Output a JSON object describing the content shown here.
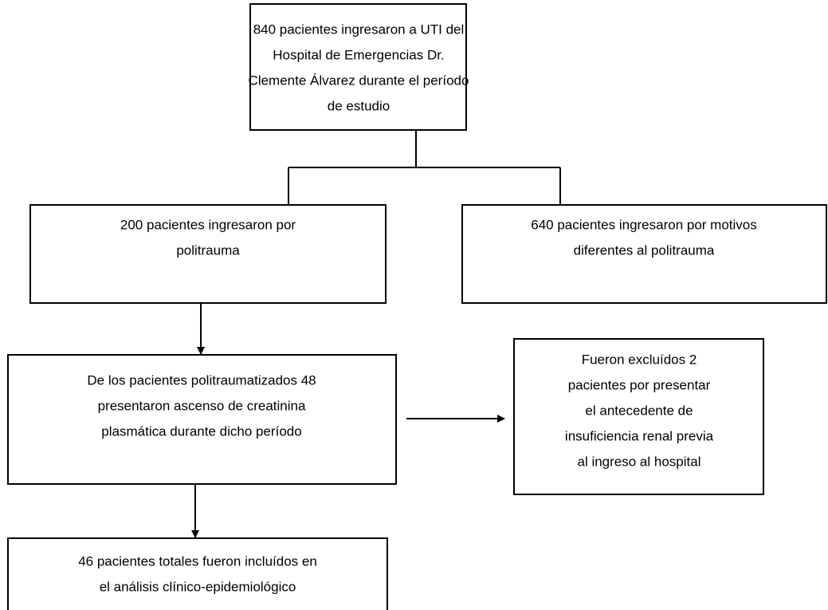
{
  "nodes": [
    {
      "lines": [
        "840 pacientes ingresaron a UTI del",
        "Hospital de Emergencias Dr.",
        "Clemente Álvarez durante el período",
        "de estudio"
      ]
    },
    {
      "lines": [
        "200 pacientes ingresaron por",
        "politrauma"
      ]
    },
    {
      "lines": [
        "640 pacientes ingresaron por motivos",
        "diferentes al politrauma"
      ]
    },
    {
      "lines": [
        "De los pacientes politraumatizados 48",
        "presentaron ascenso de creatinina",
        "plasmática durante dicho período"
      ]
    },
    {
      "lines": [
        "Fueron excluídos 2",
        "pacientes por presentar",
        "el antecedente de",
        "insuficiencia renal previa",
        "al ingreso al hospital"
      ]
    },
    {
      "lines": [
        "46 pacientes totales fueron incluídos en",
        "el análisis clínico-epidemiológico"
      ]
    }
  ]
}
